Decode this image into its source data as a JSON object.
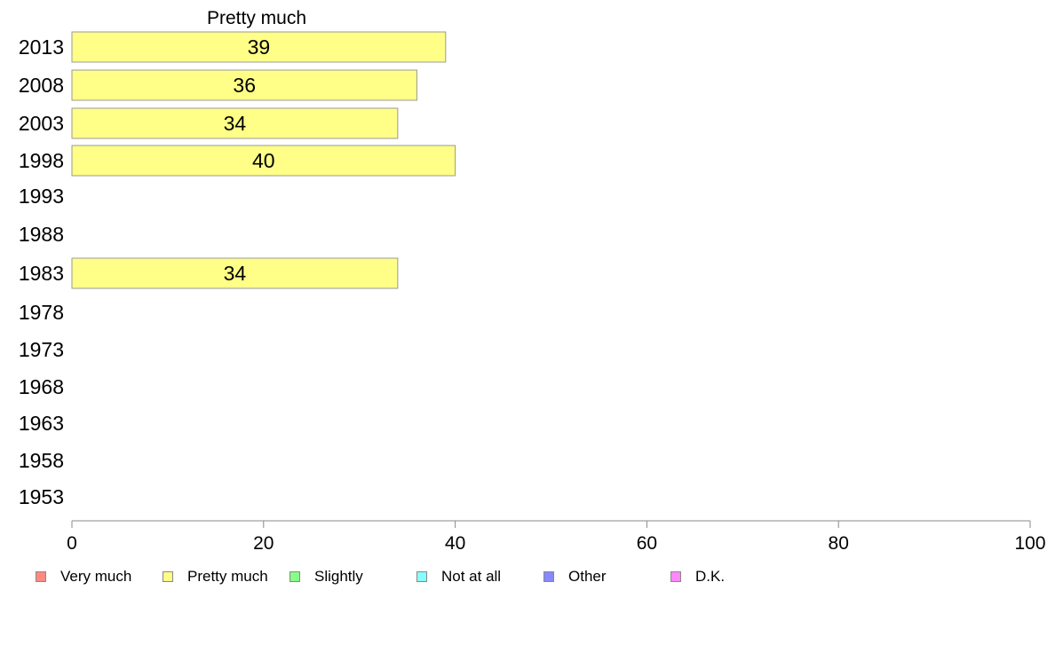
{
  "chart_data": {
    "type": "bar",
    "orientation": "horizontal",
    "title": "Pretty much",
    "categories": [
      "2013",
      "2008",
      "2003",
      "1998",
      "1993",
      "1988",
      "1983",
      "1978",
      "1973",
      "1968",
      "1963",
      "1958",
      "1953"
    ],
    "series": [
      {
        "name": "Pretty much",
        "values": [
          39,
          36,
          34,
          40,
          null,
          null,
          34,
          null,
          null,
          null,
          null,
          null,
          null
        ],
        "color": "#ffff88"
      }
    ],
    "xlim": [
      0,
      100
    ],
    "xticks": [
      "0",
      "20",
      "40",
      "60",
      "80",
      "100"
    ],
    "grid": false,
    "legend": {
      "placement": "bottom",
      "items": [
        {
          "label": "Very much",
          "color": "#ff8a80"
        },
        {
          "label": "Pretty much",
          "color": "#ffff88"
        },
        {
          "label": "Slightly",
          "color": "#88ff88"
        },
        {
          "label": "Not at all",
          "color": "#88ffff"
        },
        {
          "label": "Other",
          "color": "#8888ff"
        },
        {
          "label": "D.K.",
          "color": "#ff88ff"
        }
      ]
    }
  }
}
